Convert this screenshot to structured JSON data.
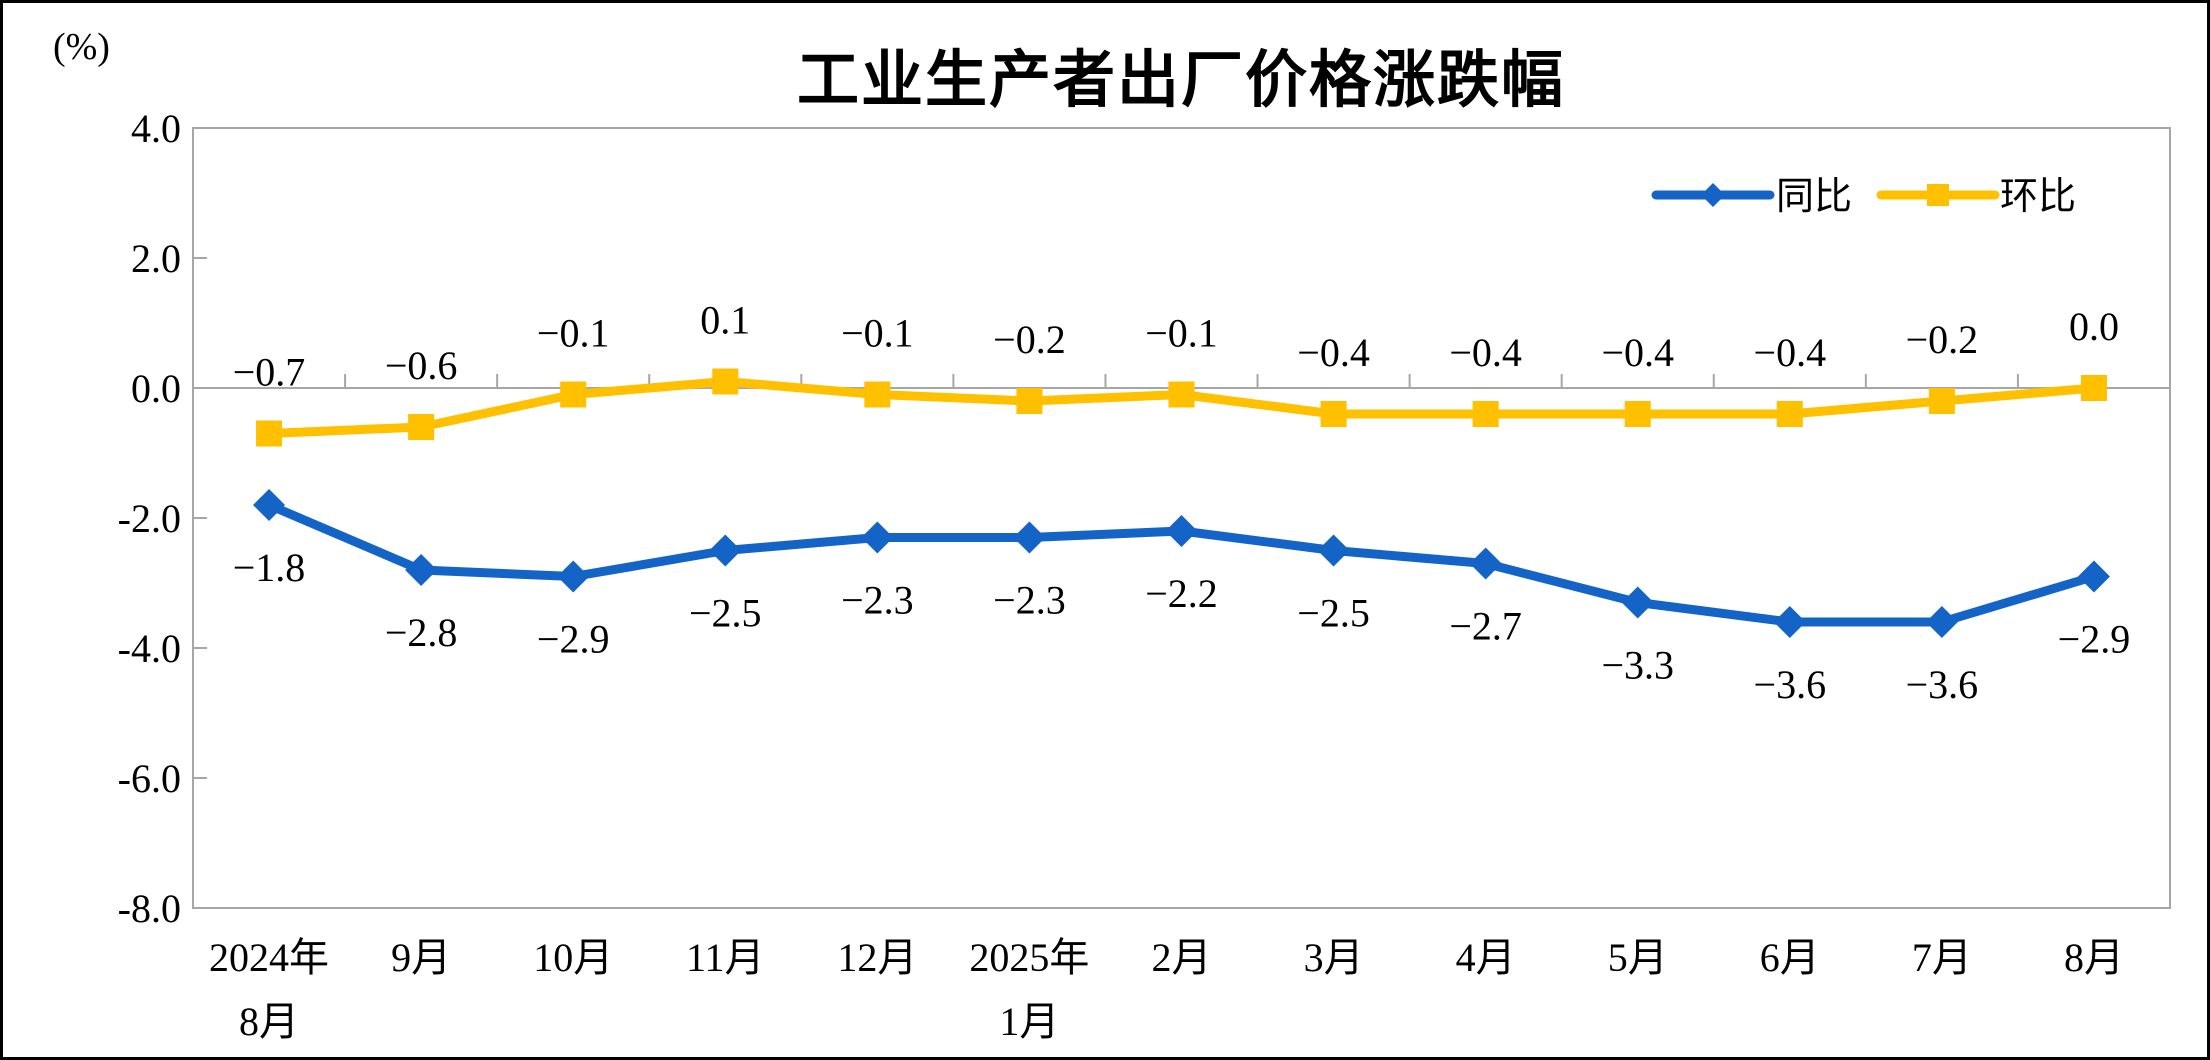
{
  "figure": {
    "title": "工业生产者出厂价格涨跌幅",
    "unit_label": "(%)"
  },
  "chart_data": {
    "type": "line",
    "title": "工业生产者出厂价格涨跌幅",
    "ylabel": "(%)",
    "categories": [
      [
        "2024年",
        "8月"
      ],
      [
        "9月"
      ],
      [
        "10月"
      ],
      [
        "11月"
      ],
      [
        "12月"
      ],
      [
        "2025年",
        "1月"
      ],
      [
        "2月"
      ],
      [
        "3月"
      ],
      [
        "4月"
      ],
      [
        "5月"
      ],
      [
        "6月"
      ],
      [
        "7月"
      ],
      [
        "8月"
      ]
    ],
    "series": [
      {
        "name": "同比",
        "color": "#1464C8",
        "marker": "diamond",
        "label_position": "below",
        "values": [
          -1.8,
          -2.8,
          -2.9,
          -2.5,
          -2.3,
          -2.3,
          -2.2,
          -2.5,
          -2.7,
          -3.3,
          -3.6,
          -3.6,
          -2.9
        ]
      },
      {
        "name": "环比",
        "color": "#FFC000",
        "marker": "square",
        "label_position": "above",
        "values": [
          -0.7,
          -0.6,
          -0.1,
          0.1,
          -0.1,
          -0.2,
          -0.1,
          -0.4,
          -0.4,
          -0.4,
          -0.4,
          -0.2,
          0.0
        ]
      }
    ],
    "ylim": [
      -8,
      4
    ],
    "yticks": [
      {
        "value": 4,
        "label": "4.0"
      },
      {
        "value": 2,
        "label": "2.0"
      },
      {
        "value": 0,
        "label": "0.0"
      },
      {
        "value": -2,
        "label": "-2.0"
      },
      {
        "value": -4,
        "label": "-4.0"
      },
      {
        "value": -6,
        "label": "-6.0"
      },
      {
        "value": -8,
        "label": "-8.0"
      }
    ],
    "grid": false,
    "legend_position": "top-right",
    "axis_color": "#A6A6A6",
    "text_color": "#000000",
    "background_color": "#FFFFFF"
  }
}
